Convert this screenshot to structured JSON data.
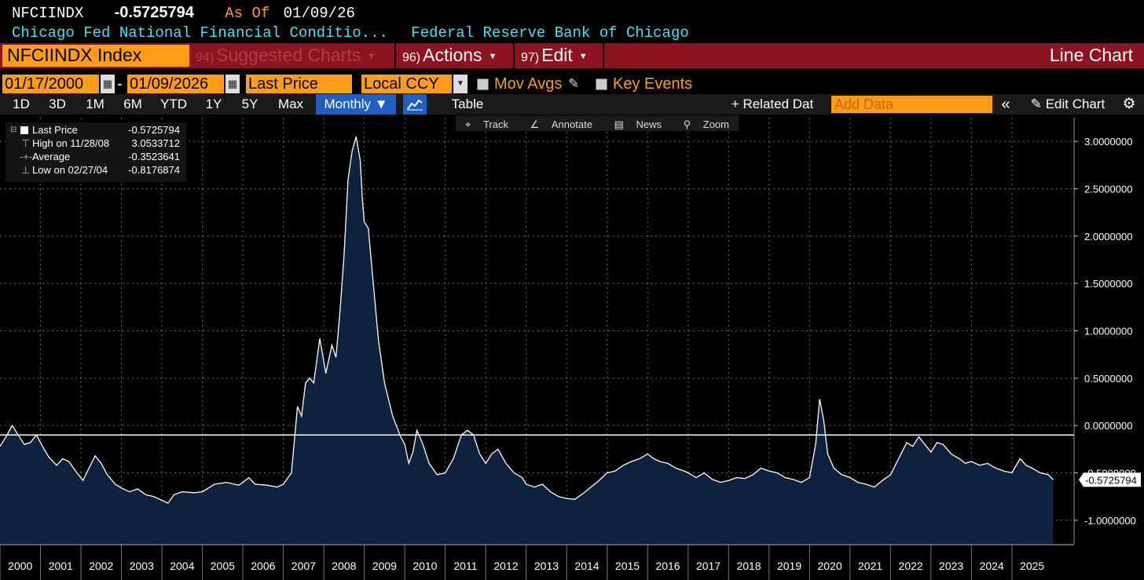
{
  "header": {
    "ticker": "NFCIINDX",
    "last_value": "-0.5725794",
    "as_of_label": "As Of",
    "as_of_date": "01/09/26",
    "description": "Chicago Fed National Financial Conditio...",
    "source": "Federal Reserve Bank of Chicago"
  },
  "menu": {
    "security": "NFCIINDX Index",
    "suggested_num": "94)",
    "suggested": "Suggested Charts",
    "actions_num": "96)",
    "actions": "Actions",
    "edit_num": "97)",
    "edit": "Edit",
    "chart_type": "Line Chart"
  },
  "controls": {
    "start_date": "01/17/2000",
    "date_sep": "-",
    "end_date": "01/09/2026",
    "field": "Last Price",
    "currency": "Local CCY",
    "mov_avgs": "Mov Avgs",
    "key_events": "Key Events"
  },
  "toolbar": {
    "periods": [
      "1D",
      "3D",
      "1M",
      "6M",
      "YTD",
      "1Y",
      "5Y",
      "Max"
    ],
    "frequency": "Monthly",
    "table": "Table",
    "related": "Related Dat",
    "add_data_placeholder": "Add Data",
    "edit_chart": "Edit Chart"
  },
  "chart_tools": {
    "track": "Track",
    "annotate": "Annotate",
    "news": "News",
    "zoom": "Zoom"
  },
  "legend": {
    "last_label": "Last Price",
    "last_value": "-0.5725794",
    "high_label": "High on 11/28/08",
    "high_value": "3.0533712",
    "avg_label": "Average",
    "avg_value": "-0.3523641",
    "low_label": "Low on 02/27/04",
    "low_value": "-0.8176874"
  },
  "colors": {
    "accent_orange": "#ff9d1a",
    "menu_red": "#8d1320",
    "cyan": "#49e0ef",
    "area_fill": "#0e2240"
  },
  "chart_data": {
    "type": "area",
    "title": "NFCIINDX Index",
    "xlabel": "",
    "ylabel": "",
    "ylim": [
      -1.25,
      3.25
    ],
    "yticks": [
      3.0,
      2.5,
      2.0,
      1.5,
      1.0,
      0.5,
      0.0,
      -0.5,
      -1.0
    ],
    "ytick_labels": [
      "3.0000000",
      "2.5000000",
      "2.0000000",
      "1.5000000",
      "1.0000000",
      "0.5000000",
      "0.0000000",
      "-0.5000000",
      "-1.0000000"
    ],
    "xlim": [
      2000.0,
      2026.05
    ],
    "year_labels": [
      "2000",
      "2001",
      "2002",
      "2003",
      "2004",
      "2005",
      "2006",
      "2007",
      "2008",
      "2009",
      "2010",
      "2011",
      "2012",
      "2013",
      "2014",
      "2015",
      "2016",
      "2017",
      "2018",
      "2019",
      "2020",
      "2021",
      "2022",
      "2023",
      "2024",
      "2025"
    ],
    "reference_line": -0.1,
    "last_label": "-0.5725794",
    "series": [
      {
        "name": "Last Price",
        "points": [
          [
            2000.0,
            -0.22
          ],
          [
            2000.15,
            -0.12
          ],
          [
            2000.3,
            0.0
          ],
          [
            2000.45,
            -0.1
          ],
          [
            2000.6,
            -0.2
          ],
          [
            2000.75,
            -0.18
          ],
          [
            2000.9,
            -0.1
          ],
          [
            2001.05,
            -0.22
          ],
          [
            2001.2,
            -0.33
          ],
          [
            2001.4,
            -0.42
          ],
          [
            2001.55,
            -0.35
          ],
          [
            2001.7,
            -0.38
          ],
          [
            2001.9,
            -0.5
          ],
          [
            2002.05,
            -0.58
          ],
          [
            2002.2,
            -0.45
          ],
          [
            2002.35,
            -0.32
          ],
          [
            2002.5,
            -0.4
          ],
          [
            2002.65,
            -0.52
          ],
          [
            2002.85,
            -0.62
          ],
          [
            2003.0,
            -0.66
          ],
          [
            2003.2,
            -0.7
          ],
          [
            2003.4,
            -0.67
          ],
          [
            2003.6,
            -0.73
          ],
          [
            2003.8,
            -0.75
          ],
          [
            2004.0,
            -0.79
          ],
          [
            2004.15,
            -0.82
          ],
          [
            2004.3,
            -0.73
          ],
          [
            2004.5,
            -0.7
          ],
          [
            2004.8,
            -0.71
          ],
          [
            2005.0,
            -0.7
          ],
          [
            2005.3,
            -0.62
          ],
          [
            2005.6,
            -0.6
          ],
          [
            2005.9,
            -0.63
          ],
          [
            2006.0,
            -0.6
          ],
          [
            2006.15,
            -0.55
          ],
          [
            2006.3,
            -0.62
          ],
          [
            2006.6,
            -0.63
          ],
          [
            2006.85,
            -0.65
          ],
          [
            2007.0,
            -0.62
          ],
          [
            2007.2,
            -0.5
          ],
          [
            2007.35,
            0.2
          ],
          [
            2007.45,
            0.1
          ],
          [
            2007.55,
            0.45
          ],
          [
            2007.65,
            0.5
          ],
          [
            2007.75,
            0.45
          ],
          [
            2007.9,
            0.92
          ],
          [
            2008.05,
            0.55
          ],
          [
            2008.2,
            0.85
          ],
          [
            2008.3,
            0.72
          ],
          [
            2008.4,
            1.2
          ],
          [
            2008.5,
            1.8
          ],
          [
            2008.6,
            2.6
          ],
          [
            2008.7,
            2.9
          ],
          [
            2008.8,
            3.05
          ],
          [
            2008.9,
            2.8
          ],
          [
            2008.95,
            2.4
          ],
          [
            2009.0,
            2.15
          ],
          [
            2009.1,
            2.08
          ],
          [
            2009.2,
            1.6
          ],
          [
            2009.35,
            0.9
          ],
          [
            2009.5,
            0.45
          ],
          [
            2009.7,
            0.1
          ],
          [
            2009.9,
            -0.12
          ],
          [
            2010.0,
            -0.2
          ],
          [
            2010.1,
            -0.4
          ],
          [
            2010.2,
            -0.28
          ],
          [
            2010.3,
            -0.05
          ],
          [
            2010.45,
            -0.2
          ],
          [
            2010.6,
            -0.4
          ],
          [
            2010.8,
            -0.52
          ],
          [
            2011.0,
            -0.5
          ],
          [
            2011.2,
            -0.35
          ],
          [
            2011.4,
            -0.1
          ],
          [
            2011.55,
            -0.05
          ],
          [
            2011.7,
            -0.1
          ],
          [
            2011.85,
            -0.3
          ],
          [
            2012.0,
            -0.4
          ],
          [
            2012.15,
            -0.3
          ],
          [
            2012.3,
            -0.25
          ],
          [
            2012.5,
            -0.4
          ],
          [
            2012.7,
            -0.5
          ],
          [
            2012.9,
            -0.55
          ],
          [
            2013.0,
            -0.62
          ],
          [
            2013.2,
            -0.65
          ],
          [
            2013.4,
            -0.62
          ],
          [
            2013.6,
            -0.7
          ],
          [
            2013.8,
            -0.75
          ],
          [
            2014.0,
            -0.77
          ],
          [
            2014.2,
            -0.78
          ],
          [
            2014.4,
            -0.72
          ],
          [
            2014.6,
            -0.65
          ],
          [
            2014.8,
            -0.58
          ],
          [
            2015.0,
            -0.5
          ],
          [
            2015.2,
            -0.48
          ],
          [
            2015.4,
            -0.42
          ],
          [
            2015.6,
            -0.38
          ],
          [
            2015.8,
            -0.35
          ],
          [
            2016.0,
            -0.3
          ],
          [
            2016.15,
            -0.35
          ],
          [
            2016.3,
            -0.38
          ],
          [
            2016.5,
            -0.4
          ],
          [
            2016.7,
            -0.45
          ],
          [
            2016.9,
            -0.48
          ],
          [
            2017.0,
            -0.5
          ],
          [
            2017.2,
            -0.55
          ],
          [
            2017.4,
            -0.5
          ],
          [
            2017.6,
            -0.57
          ],
          [
            2017.8,
            -0.6
          ],
          [
            2018.0,
            -0.58
          ],
          [
            2018.2,
            -0.55
          ],
          [
            2018.4,
            -0.56
          ],
          [
            2018.6,
            -0.52
          ],
          [
            2018.8,
            -0.45
          ],
          [
            2019.0,
            -0.48
          ],
          [
            2019.2,
            -0.5
          ],
          [
            2019.4,
            -0.55
          ],
          [
            2019.6,
            -0.57
          ],
          [
            2019.8,
            -0.6
          ],
          [
            2020.0,
            -0.55
          ],
          [
            2020.15,
            -0.2
          ],
          [
            2020.25,
            0.28
          ],
          [
            2020.35,
            0.05
          ],
          [
            2020.45,
            -0.3
          ],
          [
            2020.6,
            -0.45
          ],
          [
            2020.8,
            -0.52
          ],
          [
            2021.0,
            -0.55
          ],
          [
            2021.2,
            -0.6
          ],
          [
            2021.4,
            -0.62
          ],
          [
            2021.6,
            -0.65
          ],
          [
            2021.8,
            -0.58
          ],
          [
            2022.0,
            -0.52
          ],
          [
            2022.2,
            -0.35
          ],
          [
            2022.4,
            -0.18
          ],
          [
            2022.55,
            -0.22
          ],
          [
            2022.7,
            -0.12
          ],
          [
            2022.85,
            -0.2
          ],
          [
            2023.0,
            -0.28
          ],
          [
            2023.15,
            -0.18
          ],
          [
            2023.3,
            -0.2
          ],
          [
            2023.5,
            -0.3
          ],
          [
            2023.7,
            -0.35
          ],
          [
            2023.85,
            -0.4
          ],
          [
            2024.0,
            -0.38
          ],
          [
            2024.2,
            -0.42
          ],
          [
            2024.4,
            -0.4
          ],
          [
            2024.6,
            -0.45
          ],
          [
            2024.8,
            -0.48
          ],
          [
            2025.0,
            -0.5
          ],
          [
            2025.2,
            -0.35
          ],
          [
            2025.35,
            -0.42
          ],
          [
            2025.5,
            -0.45
          ],
          [
            2025.7,
            -0.5
          ],
          [
            2025.9,
            -0.52
          ],
          [
            2026.02,
            -0.5725794
          ]
        ]
      }
    ]
  }
}
